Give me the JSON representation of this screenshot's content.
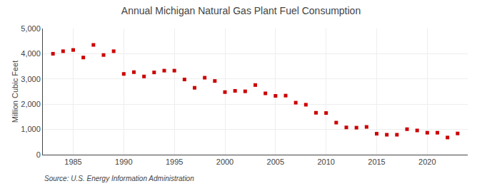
{
  "chart_data": {
    "type": "scatter",
    "title": "Annual Michigan Natural Gas Plant Fuel Consumption",
    "ylabel": "Million Cubic Feet",
    "source": "Source: U.S. Energy Information Administration",
    "x": [
      1983,
      1984,
      1985,
      1986,
      1987,
      1988,
      1989,
      1990,
      1991,
      1992,
      1993,
      1994,
      1995,
      1996,
      1997,
      1998,
      1999,
      2000,
      2001,
      2002,
      2003,
      2004,
      2005,
      2006,
      2007,
      2008,
      2009,
      2010,
      2011,
      2012,
      2013,
      2014,
      2015,
      2016,
      2017,
      2018,
      2019,
      2020,
      2021,
      2022,
      2023
    ],
    "values": [
      4000,
      4100,
      4150,
      3850,
      4350,
      3950,
      4100,
      3200,
      3270,
      3100,
      3260,
      3330,
      3330,
      2980,
      2650,
      3050,
      2920,
      2480,
      2530,
      2510,
      2760,
      2430,
      2330,
      2340,
      2060,
      1980,
      1660,
      1650,
      1270,
      1080,
      1070,
      1100,
      830,
      790,
      790,
      1010,
      960,
      870,
      870,
      680,
      840
    ],
    "color": "#cc0000",
    "marker": "square",
    "xlim": [
      1982,
      2024
    ],
    "xticks": [
      1985,
      1990,
      1995,
      2000,
      2005,
      2010,
      2015,
      2020
    ],
    "ylim": [
      0,
      5000
    ],
    "yticks": [
      0,
      {
        "value": 1000,
        "label": "1,000"
      },
      {
        "value": 2000,
        "label": "2,000"
      },
      {
        "value": 3000,
        "label": "3,000"
      },
      {
        "value": 4000,
        "label": "4,000"
      },
      {
        "value": 5000,
        "label": "5,000"
      }
    ],
    "grid": true
  }
}
